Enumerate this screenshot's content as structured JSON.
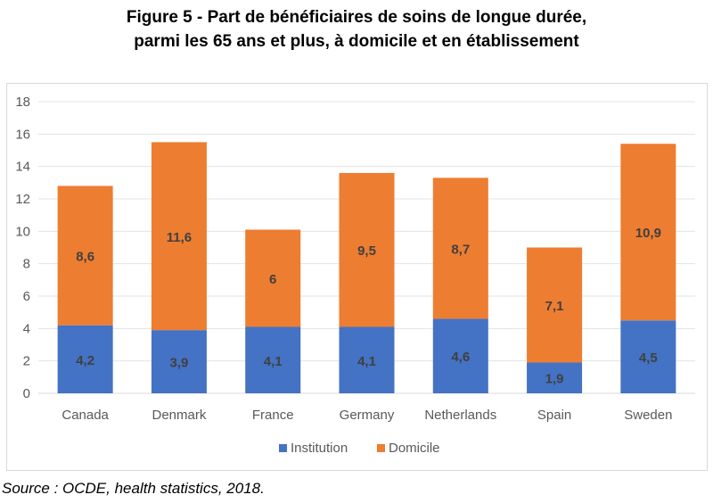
{
  "title_line1": "Figure 5 - Part de bénéficiaires de soins de longue durée,",
  "title_line2": "parmi les 65 ans et plus, à domicile et en établissement",
  "source": "Source : OCDE, health statistics, 2018.",
  "chart_data": {
    "type": "bar",
    "stacked": true,
    "categories": [
      "Canada",
      "Denmark",
      "France",
      "Germany",
      "Netherlands",
      "Spain",
      "Sweden"
    ],
    "series": [
      {
        "name": "Institution",
        "values": [
          4.2,
          3.9,
          4.1,
          4.1,
          4.6,
          1.9,
          4.5
        ],
        "labels": [
          "4,2",
          "3,9",
          "4,1",
          "4,1",
          "4,6",
          "1,9",
          "4,5"
        ],
        "color": "#4472c4"
      },
      {
        "name": "Domicile",
        "values": [
          8.6,
          11.6,
          6,
          9.5,
          8.7,
          7.1,
          10.9
        ],
        "labels": [
          "8,6",
          "11,6",
          "6",
          "9,5",
          "8,7",
          "7,1",
          "10,9"
        ],
        "color": "#ed7d31"
      }
    ],
    "ylim": [
      0,
      18
    ],
    "yticks": [
      0,
      2,
      4,
      6,
      8,
      10,
      12,
      14,
      16,
      18
    ],
    "grid": true,
    "legend": "bottom"
  }
}
